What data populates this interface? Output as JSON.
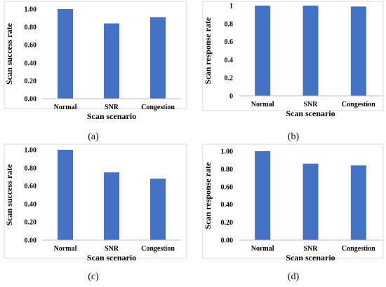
{
  "chart_data": [
    {
      "type": "bar",
      "panel_label": "(a)",
      "categories": [
        "Normal",
        "SNR",
        "Congestion"
      ],
      "series": [
        {
          "values": [
            1.0,
            0.84,
            0.91
          ]
        }
      ],
      "xlabel": "Scan scenario",
      "ylabel": "Scan success rate",
      "ylim": [
        0,
        1
      ],
      "yticks": [
        "0.00",
        "0.20",
        "0.40",
        "0.60",
        "0.80",
        "1.00"
      ],
      "grid": false,
      "bar_color": "#4472c4"
    },
    {
      "type": "bar",
      "panel_label": "(b)",
      "categories": [
        "Normal",
        "SNR",
        "Congestion"
      ],
      "series": [
        {
          "values": [
            1.0,
            1.0,
            0.99
          ]
        }
      ],
      "xlabel": "Scan scenario",
      "ylabel": "Scan response rate",
      "ylim": [
        0,
        1
      ],
      "yticks": [
        "0",
        "0.2",
        "0.4",
        "0.6",
        "0.8",
        "1"
      ],
      "grid": false,
      "bar_color": "#4472c4"
    },
    {
      "type": "bar",
      "panel_label": "(c)",
      "categories": [
        "Normal",
        "SNR",
        "Congestion"
      ],
      "series": [
        {
          "values": [
            1.0,
            0.75,
            0.68
          ]
        }
      ],
      "xlabel": "Scan scenario",
      "ylabel": "Scan success rate",
      "ylim": [
        0,
        1
      ],
      "yticks": [
        "0.00",
        "0.20",
        "0.40",
        "0.60",
        "0.80",
        "1.00"
      ],
      "grid": false,
      "bar_color": "#4472c4"
    },
    {
      "type": "bar",
      "panel_label": "(d)",
      "categories": [
        "Normal",
        "SNR",
        "Congestion"
      ],
      "series": [
        {
          "values": [
            1.0,
            0.86,
            0.84
          ]
        }
      ],
      "xlabel": "Scan scenario",
      "ylabel": "Scan response rate",
      "ylim": [
        0,
        1
      ],
      "yticks": [
        "0.00",
        "0.20",
        "0.40",
        "0.60",
        "0.80",
        "1.00"
      ],
      "grid": false,
      "bar_color": "#4472c4"
    }
  ]
}
